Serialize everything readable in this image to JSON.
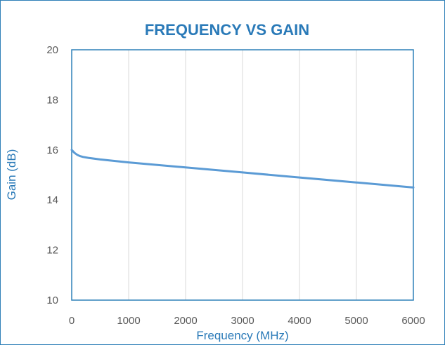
{
  "chart_data": {
    "type": "line",
    "title": "FREQUENCY VS GAIN",
    "xlabel": "Frequency (MHz)",
    "ylabel": "Gain (dB)",
    "xlim": [
      0,
      6000
    ],
    "ylim": [
      10,
      20
    ],
    "x_ticks": [
      "0",
      "1000",
      "2000",
      "3000",
      "4000",
      "5000",
      "6000"
    ],
    "y_ticks": [
      "10",
      "12",
      "14",
      "16",
      "18",
      "20"
    ],
    "grid": true,
    "legend": "none",
    "colors": {
      "line": "#5b9bd5",
      "title": "#2a7ab8",
      "frame": "#2f80b8",
      "grid": "#d9d9d9"
    },
    "series": [
      {
        "x": [
          0,
          50,
          100,
          150,
          200,
          300,
          500,
          1000,
          2000,
          3000,
          4000,
          5000,
          6000
        ],
        "y": [
          16.0,
          15.88,
          15.8,
          15.75,
          15.72,
          15.68,
          15.62,
          15.5,
          15.3,
          15.1,
          14.9,
          14.7,
          14.5
        ]
      }
    ]
  }
}
